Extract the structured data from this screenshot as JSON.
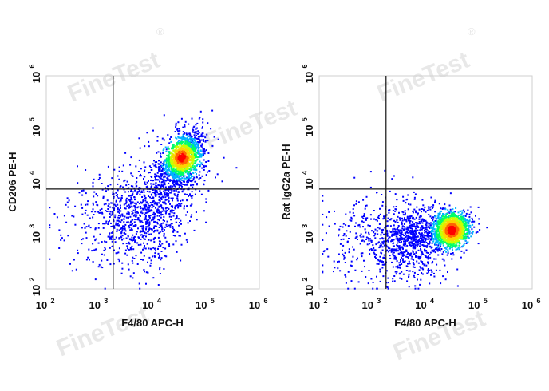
{
  "watermark": {
    "text": "FineTest",
    "reg": "®"
  },
  "chart_data": [
    {
      "type": "scatter",
      "subtype": "flow-cytometry-density",
      "xlabel": "F4/80 APC-H",
      "ylabel": "CD206 PE-H",
      "xscale": "log",
      "yscale": "log",
      "xlim": [
        100,
        1000000
      ],
      "ylim": [
        100,
        1000000
      ],
      "xticks": [
        100,
        1000,
        10000,
        100000,
        1000000
      ],
      "yticks": [
        100,
        1000,
        10000,
        100000,
        1000000
      ],
      "tick_base": "10",
      "tick_exponents": [
        "2",
        "3",
        "4",
        "5",
        "6"
      ],
      "gate": {
        "x": 1800,
        "y": 7500
      },
      "population": {
        "main_center": [
          35000,
          28000
        ],
        "dense_core": [
          34000,
          30000
        ],
        "tail_center": [
          9000,
          3500
        ],
        "spread_log_x": 0.35,
        "spread_log_y": 0.45
      },
      "colormap": [
        "#0000ff",
        "#00b4ff",
        "#00ff64",
        "#c8ff00",
        "#ffd200",
        "#ff6400",
        "#ff0000"
      ]
    },
    {
      "type": "scatter",
      "subtype": "flow-cytometry-density",
      "xlabel": "F4/80 APC-H",
      "ylabel": "Rat IgG2a PE-H",
      "xscale": "log",
      "yscale": "log",
      "xlim": [
        100,
        1000000
      ],
      "ylim": [
        100,
        1000000
      ],
      "xticks": [
        100,
        1000,
        10000,
        100000,
        1000000
      ],
      "yticks": [
        100,
        1000,
        10000,
        100000,
        1000000
      ],
      "tick_base": "10",
      "tick_exponents": [
        "2",
        "3",
        "4",
        "5",
        "6"
      ],
      "gate": {
        "x": 1800,
        "y": 7500
      },
      "population": {
        "main_center": [
          30000,
          1300
        ],
        "dense_core": [
          30000,
          1300
        ],
        "tail_center": [
          6000,
          900
        ],
        "spread_log_x": 0.3,
        "spread_log_y": 0.28
      },
      "colormap": [
        "#0000ff",
        "#00b4ff",
        "#00ff64",
        "#c8ff00",
        "#ffd200",
        "#ff6400",
        "#ff0000"
      ]
    }
  ]
}
